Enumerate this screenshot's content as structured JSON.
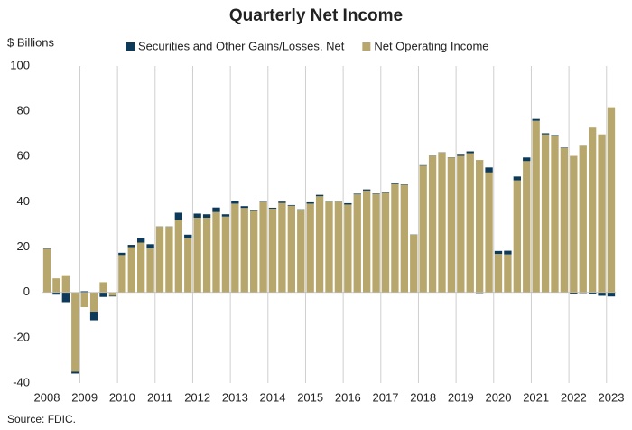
{
  "chart_data": {
    "type": "stacked-bar",
    "title": "Quarterly Net Income",
    "y_label": "$ Billions",
    "source": "Source: FDIC.",
    "categories": [
      "2008",
      null,
      null,
      null,
      "2009",
      null,
      null,
      null,
      "2010",
      null,
      null,
      null,
      "2011",
      null,
      null,
      null,
      "2012",
      null,
      null,
      null,
      "2013",
      null,
      null,
      null,
      "2014",
      null,
      null,
      null,
      "2015",
      null,
      null,
      null,
      "2016",
      null,
      null,
      null,
      "2017",
      null,
      null,
      null,
      "2018",
      null,
      null,
      null,
      "2019",
      null,
      null,
      null,
      "2020",
      null,
      null,
      null,
      "2021",
      null,
      null,
      null,
      "2022",
      null,
      null,
      null,
      "2023"
    ],
    "series": [
      {
        "name": "Net Operating Income",
        "color": "#b8a76c",
        "values": [
          19.3,
          6.2,
          7.6,
          -35.0,
          -6.5,
          -8.5,
          4.5,
          -1.5,
          16.5,
          20,
          22,
          19.5,
          29,
          29,
          32,
          24,
          33,
          33,
          35.5,
          33.5,
          39.2,
          37.3,
          36,
          39.8,
          37,
          39.5,
          38.3,
          36.4,
          39.2,
          42.5,
          40.2,
          40.2,
          38.8,
          43.3,
          45,
          43.5,
          44,
          47.8,
          47.5,
          25.5,
          56,
          60.3,
          61.8,
          59.6,
          60.3,
          61.5,
          58.5,
          53,
          17,
          16.8,
          49.5,
          58,
          75.8,
          69.8,
          69.2,
          63.8,
          60.3,
          64.8,
          72.8,
          69.8,
          81.8
        ]
      },
      {
        "name": "Securities and Other Gains/Losses, Net",
        "color": "#0c3a58",
        "values": [
          0.2,
          -1.0,
          -4.3,
          -0.8,
          0.5,
          -3.8,
          -2.0,
          -0.3,
          1.0,
          1.0,
          2.0,
          1.8,
          0.1,
          0.1,
          3.2,
          1.5,
          1.8,
          1.5,
          2.0,
          1.0,
          1.3,
          0.8,
          0.3,
          0.2,
          0.4,
          0.6,
          0.3,
          0.3,
          0.6,
          0.6,
          0.3,
          0.2,
          0.6,
          0.3,
          0.5,
          0.2,
          0.2,
          0.3,
          0.2,
          0.1,
          0.2,
          0.1,
          0.1,
          0.1,
          0.5,
          0.8,
          -0.3,
          2.2,
          1.3,
          1.6,
          1.7,
          1.6,
          0.8,
          0.5,
          0.3,
          0.2,
          -0.5,
          -0.3,
          -0.9,
          -1.5,
          -1.8
        ]
      }
    ],
    "ylim": [
      -40,
      100
    ],
    "yticks": [
      100,
      80,
      60,
      40,
      20,
      0,
      -20,
      -40
    ]
  }
}
